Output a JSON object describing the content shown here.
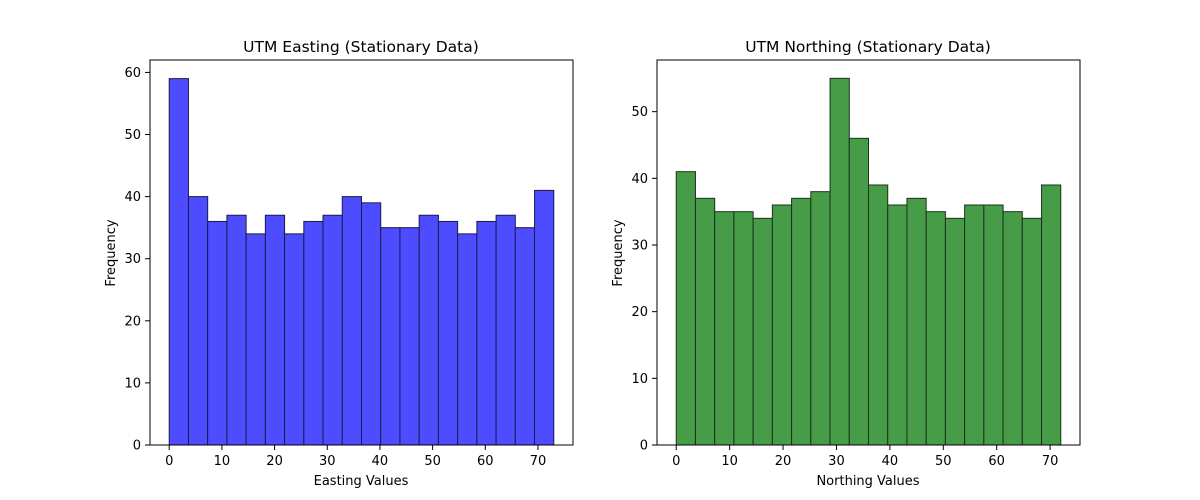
{
  "chart_data": [
    {
      "type": "bar",
      "title": "UTM Easting (Stationary Data)",
      "xlabel": "Easting Values",
      "ylabel": "Frequency",
      "color": "#4d4dff",
      "edge_color": "#1a1a4d",
      "bin_edges": [
        0,
        3.65,
        7.3,
        10.95,
        14.6,
        18.25,
        21.9,
        25.55,
        29.2,
        32.85,
        36.5,
        40.15,
        43.8,
        47.45,
        51.1,
        54.75,
        58.4,
        62.05,
        65.7,
        69.35,
        73
      ],
      "values": [
        59,
        40,
        36,
        37,
        34,
        37,
        34,
        36,
        37,
        40,
        39,
        35,
        35,
        37,
        36,
        34,
        36,
        37,
        35,
        41
      ],
      "xlim": [
        -3.65,
        76.65
      ],
      "ylim": [
        0,
        62
      ],
      "xticks": [
        0,
        10,
        20,
        30,
        40,
        50,
        60,
        70
      ],
      "yticks": [
        0,
        10,
        20,
        30,
        40,
        50,
        60
      ],
      "grid": false
    },
    {
      "type": "bar",
      "title": "UTM Northing (Stationary Data)",
      "xlabel": "Northing Values",
      "ylabel": "Frequency",
      "color": "#479c47",
      "edge_color": "#1a331a",
      "bin_edges": [
        0,
        3.6,
        7.2,
        10.8,
        14.4,
        18,
        21.6,
        25.2,
        28.8,
        32.4,
        36,
        39.6,
        43.2,
        46.8,
        50.4,
        54,
        57.6,
        61.2,
        64.8,
        68.4,
        72
      ],
      "values": [
        41,
        37,
        35,
        35,
        34,
        36,
        37,
        38,
        55,
        46,
        39,
        36,
        37,
        35,
        34,
        36,
        36,
        35,
        34,
        39
      ],
      "xlim": [
        -3.6,
        75.6
      ],
      "ylim": [
        0,
        57.75
      ],
      "xticks": [
        0,
        10,
        20,
        30,
        40,
        50,
        60,
        70
      ],
      "yticks": [
        0,
        10,
        20,
        30,
        40,
        50
      ],
      "grid": false
    }
  ]
}
